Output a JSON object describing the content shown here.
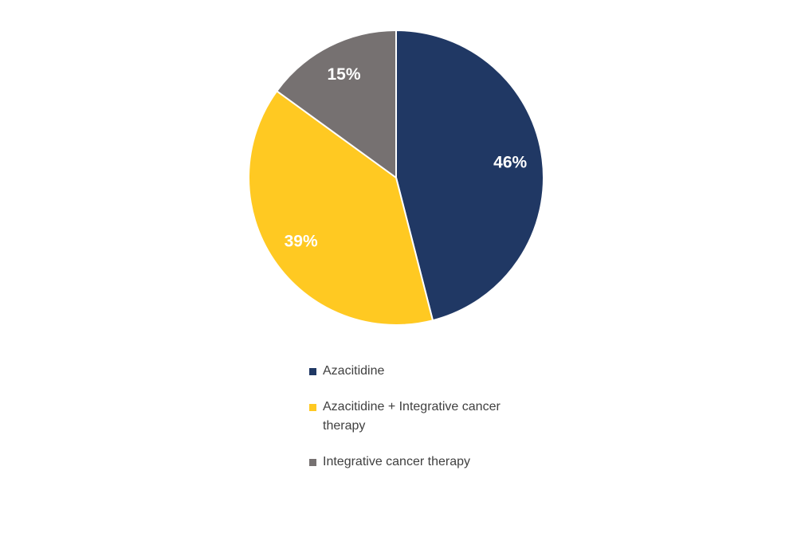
{
  "chart_data": {
    "type": "pie",
    "categories": [
      "Azacitidine",
      "Azacitidine + Integrative cancer therapy",
      "Integrative cancer therapy"
    ],
    "values": [
      46,
      39,
      15
    ],
    "value_labels": [
      "46%",
      "39%",
      "15%"
    ],
    "colors": [
      "#203864",
      "#ffc922",
      "#767171"
    ],
    "legend": "bottom"
  }
}
